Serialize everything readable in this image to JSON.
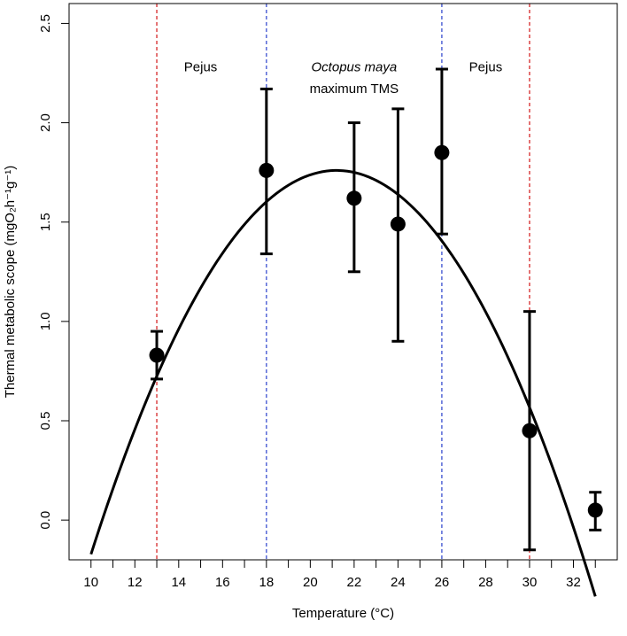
{
  "chart_data": {
    "type": "scatter",
    "xlabel": "Temperature (°C)",
    "ylabel": "Thermal metabolic scope (mgO₂h⁻¹g⁻¹)",
    "xlim": [
      9.0,
      34.0
    ],
    "ylim": [
      -0.2,
      2.6
    ],
    "xticks": [
      10,
      11,
      12,
      13,
      14,
      15,
      16,
      17,
      18,
      19,
      20,
      21,
      22,
      23,
      24,
      25,
      26,
      27,
      28,
      29,
      30,
      31,
      32,
      33
    ],
    "xtick_labels": [
      "10",
      "",
      "12",
      "",
      "14",
      "",
      "16",
      "",
      "18",
      "",
      "20",
      "",
      "22",
      "",
      "24",
      "",
      "26",
      "",
      "28",
      "",
      "30",
      "",
      "32",
      ""
    ],
    "yticks": [
      0.0,
      0.5,
      1.0,
      1.5,
      2.0,
      2.5
    ],
    "ytick_labels": [
      "0.0",
      "0.5",
      "1.0",
      "1.5",
      "2.0",
      "2.5"
    ],
    "grid": false,
    "points": [
      {
        "x": 13,
        "y": 0.83,
        "lower": 0.71,
        "upper": 0.95
      },
      {
        "x": 18,
        "y": 1.76,
        "lower": 1.34,
        "upper": 2.17
      },
      {
        "x": 22,
        "y": 1.62,
        "lower": 1.25,
        "upper": 2.0
      },
      {
        "x": 24,
        "y": 1.49,
        "lower": 0.9,
        "upper": 2.07
      },
      {
        "x": 26,
        "y": 1.85,
        "lower": 1.44,
        "upper": 2.27
      },
      {
        "x": 30,
        "y": 0.45,
        "lower": -0.15,
        "upper": 1.05
      },
      {
        "x": 33,
        "y": 0.05,
        "lower": -0.05,
        "upper": 0.14
      }
    ],
    "fit_curve": {
      "type": "quadratic",
      "x_range": [
        10,
        33
      ],
      "vertex_x": 21.2,
      "vertex_y": 1.76,
      "curvature": -0.0154
    },
    "vlines": [
      {
        "x": 13,
        "color": "#d62728"
      },
      {
        "x": 18,
        "color": "#3a4fd0"
      },
      {
        "x": 26,
        "color": "#3a4fd0"
      },
      {
        "x": 30,
        "color": "#d62728"
      }
    ],
    "annotations": [
      {
        "text": "Pejus",
        "x": 15.0,
        "y": 2.26,
        "italic": false
      },
      {
        "text": "Octopus maya",
        "x": 22.0,
        "y": 2.26,
        "italic": true
      },
      {
        "text": "maximum TMS",
        "x": 22.0,
        "y": 2.15,
        "italic": false
      },
      {
        "text": "Pejus",
        "x": 28.0,
        "y": 2.26,
        "italic": false
      }
    ]
  }
}
